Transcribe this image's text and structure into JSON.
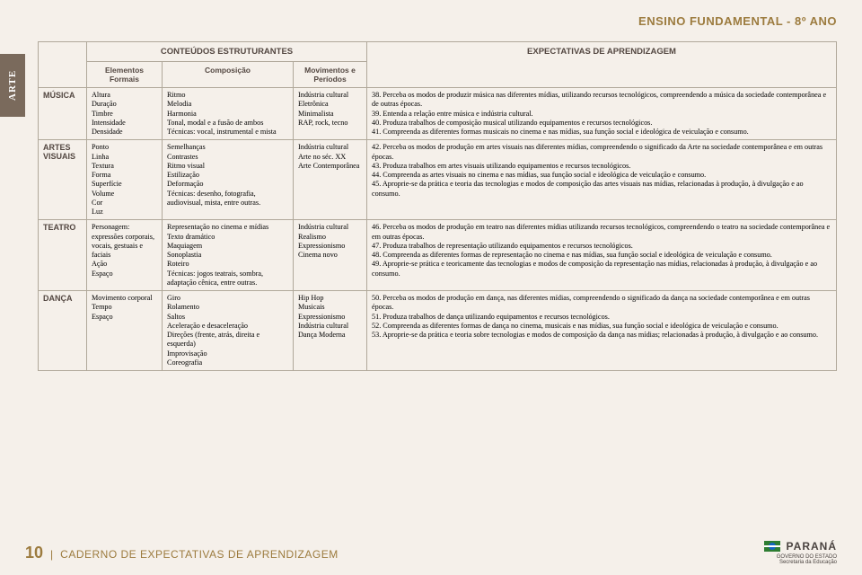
{
  "sideTab": "ARTE",
  "headerRight": "ENSINO FUNDAMENTAL - 8º ANO",
  "superHeaders": {
    "left": "CONTEÚDOS ESTRUTURANTES",
    "right": "EXPECTATIVAS DE APRENDIZAGEM"
  },
  "subHeaders": {
    "elem": "Elementos Formais",
    "comp": "Composição",
    "mov": "Movimentos e Períodos"
  },
  "rows": [
    {
      "label": "MÚSICA",
      "elem": "Altura\nDuração\nTimbre\nIntensidade\nDensidade",
      "comp": "Ritmo\nMelodia\nHarmonia\nTonal, modal e a fusão de ambos\nTécnicas: vocal, instrumental e mista",
      "mov": "Indústria cultural\nEletrônica\nMinimalista\nRAP, rock, tecno",
      "exp": "38. Perceba os modos de produzir música nas diferentes mídias, utilizando recursos tecnológicos, compreendendo a música da sociedade contemporânea e de outras épocas.\n39. Entenda a relação entre música e indústria cultural.\n40. Produza trabalhos de composição musical utilizando equipamentos e recursos tecnológicos.\n41. Compreenda as diferentes formas musicais no cinema e nas mídias, sua função social e ideológica de veiculação e consumo."
    },
    {
      "label": "ARTES VISUAIS",
      "elem": "Ponto\nLinha\nTextura\nForma\nSuperfície\nVolume\nCor\nLuz",
      "comp": "Semelhanças\nContrastes\nRitmo visual\nEstilização\nDeformação\nTécnicas: desenho, fotografia, audiovisual, mista, entre outras.",
      "mov": "Indústria cultural\nArte no séc. XX\nArte Contemporânea",
      "exp": "42. Perceba os modos de produção em artes visuais nas diferentes mídias, compreendendo o significado da Arte na sociedade contemporânea e em outras épocas.\n43. Produza trabalhos em artes visuais utilizando equipamentos e recursos tecnológicos.\n44. Compreenda as artes visuais no cinema e nas mídias, sua função social e ideológica de veiculação e consumo.\n45. Aproprie-se da prática e teoria das tecnologias e modos de composição das artes visuais nas mídias, relacionadas à produção, à divulgação e ao consumo."
    },
    {
      "label": "TEATRO",
      "elem": "Personagem: expressões corporais, vocais, gestuais e faciais\nAção\nEspaço",
      "comp": "Representação no cinema e mídias\nTexto dramático\nMaquiagem\nSonoplastia\nRoteiro\nTécnicas: jogos teatrais, sombra, adaptação cênica, entre outras.",
      "mov": "Indústria cultural\nRealismo\nExpressionismo\nCinema novo",
      "exp": "46. Perceba os modos de produção em teatro nas diferentes mídias utilizando recursos tecnológicos, compreendendo o teatro na sociedade contemporânea e em outras épocas.\n47. Produza trabalhos de representação utilizando equipamentos e recursos tecnológicos.\n48. Compreenda as diferentes formas de representação no cinema e nas mídias, sua função social e ideológica de veiculação e consumo.\n49. Aproprie-se prática e teoricamente das tecnologias e modos de composição da representação nas mídias, relacionadas à produção, à divulgação e ao consumo."
    },
    {
      "label": "DANÇA",
      "elem": "Movimento corporal\nTempo\nEspaço",
      "comp": "Giro\nRolamento\nSaltos\nAceleração e desaceleração\nDireções (frente, atrás, direita e esquerda)\nImprovisação\nCoreografia",
      "mov": "Hip Hop\nMusicais\nExpressionismo\nIndústria cultural\nDança Moderna",
      "exp": "50. Perceba os modos de produção em dança, nas diferentes mídias, compreendendo o significado da dança na sociedade contemporânea e em outras épocas.\n51. Produza trabalhos de dança utilizando equipamentos e recursos tecnológicos.\n52. Compreenda as diferentes formas de dança no cinema, musicais e nas mídias, sua função social e ideológica de veiculação e consumo.\n53. Aproprie-se da prática e teoria sobre tecnologias e modos de composição da dança nas mídias; relacionadas à produção, à divulgação e ao consumo."
    }
  ],
  "footer": {
    "page": "10",
    "title": "CADERNO DE EXPECTATIVAS DE APRENDIZAGEM"
  },
  "logo": {
    "state": "PARANÁ",
    "line1": "GOVERNO DO ESTADO",
    "line2": "Secretaria da Educação"
  },
  "colors": {
    "accent": "#9c7b3e",
    "tab": "#7a6a5c",
    "border": "#b0a89a",
    "bg": "#f5f0ea"
  }
}
